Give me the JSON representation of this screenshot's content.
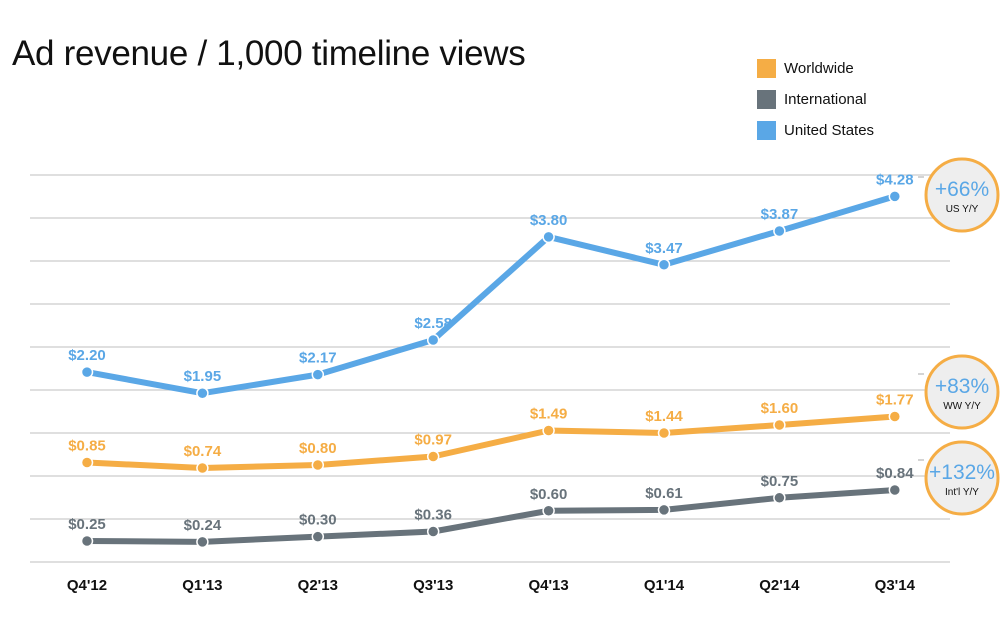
{
  "chart_data": {
    "type": "line",
    "title": "Ad revenue / 1,000 timeline views",
    "xlabel": "",
    "ylabel": "",
    "grid": true,
    "legend_position": "top-right",
    "categories": [
      "Q4'12",
      "Q1'13",
      "Q2'13",
      "Q3'13",
      "Q4'13",
      "Q1'14",
      "Q2'14",
      "Q3'14"
    ],
    "series": [
      {
        "name": "Worldwide",
        "key": "ww",
        "color": "#f5ad45",
        "values": [
          0.85,
          0.74,
          0.8,
          0.97,
          1.49,
          1.44,
          1.6,
          1.77
        ],
        "labels": [
          "$0.85",
          "$0.74",
          "$0.80",
          "$0.97",
          "$1.49",
          "$1.44",
          "$1.60",
          "$1.77"
        ]
      },
      {
        "name": "International",
        "key": "intl",
        "color": "#68737b",
        "values": [
          0.25,
          0.24,
          0.3,
          0.36,
          0.6,
          0.61,
          0.75,
          0.84
        ],
        "labels": [
          "$0.25",
          "$0.24",
          "$0.30",
          "$0.36",
          "$0.60",
          "$0.61",
          "$0.75",
          "$0.84"
        ]
      },
      {
        "name": "United States",
        "key": "us",
        "color": "#5aa7e6",
        "values": [
          2.2,
          1.95,
          2.17,
          2.58,
          3.8,
          3.47,
          3.87,
          4.28
        ],
        "labels": [
          "$2.20",
          "$1.95",
          "$2.17",
          "$2.58",
          "$3.80",
          "$3.47",
          "$3.87",
          "$4.28"
        ]
      }
    ],
    "annotations": [
      {
        "series": "us",
        "value": "+66%",
        "label": "US Y/Y"
      },
      {
        "series": "ww",
        "value": "+83%",
        "label": "WW Y/Y"
      },
      {
        "series": "intl",
        "value": "+132%",
        "label": "Int'l Y/Y"
      }
    ]
  },
  "colors": {
    "badge_border": "#f5ad45",
    "badge_fill": "#eeeeee",
    "badge_text": "#5aa7e6",
    "grid": "#cccccc"
  }
}
